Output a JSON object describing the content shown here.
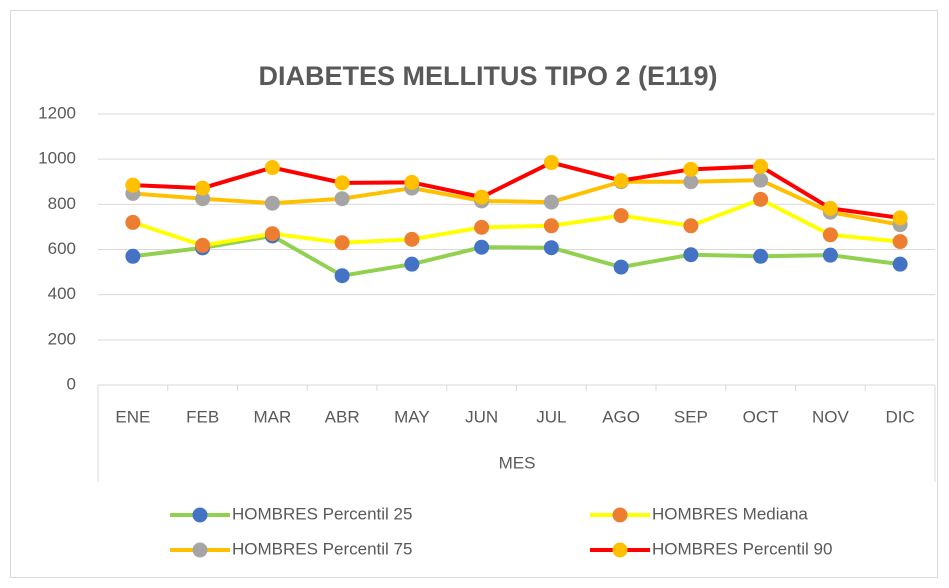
{
  "chart_data": {
    "type": "line",
    "title": "DIABETES MELLITUS TIPO 2 (E119)",
    "x_label": "MES",
    "categories": [
      "ENE",
      "FEB",
      "MAR",
      "ABR",
      "MAY",
      "JUN",
      "JUL",
      "AGO",
      "SEP",
      "OCT",
      "NOV",
      "DIC"
    ],
    "series": [
      {
        "name": "HOMBRES Percentil 25",
        "color": "#92d050",
        "marker_color": "#4472c4",
        "values": [
          570,
          607,
          660,
          484,
          535,
          610,
          608,
          522,
          577,
          570,
          575,
          535
        ]
      },
      {
        "name": "HOMBRES Mediana",
        "color": "#ffff00",
        "marker_color": "#ed7d31",
        "values": [
          720,
          618,
          670,
          630,
          645,
          698,
          705,
          750,
          705,
          822,
          665,
          635
        ]
      },
      {
        "name": "HOMBRES Percentil 75",
        "color": "#ffc000",
        "marker_color": "#a5a5a5",
        "values": [
          848,
          825,
          805,
          825,
          872,
          815,
          810,
          900,
          900,
          907,
          765,
          710
        ]
      },
      {
        "name": "HOMBRES Percentil 90",
        "color": "#ff0000",
        "marker_color": "#ffc000",
        "values": [
          885,
          872,
          963,
          895,
          897,
          832,
          985,
          905,
          955,
          968,
          782,
          740
        ]
      }
    ],
    "ylim": [
      0,
      1200
    ],
    "yticks": [
      0,
      200,
      400,
      600,
      800,
      1000,
      1200
    ],
    "grid": true,
    "legend": "bottom"
  }
}
